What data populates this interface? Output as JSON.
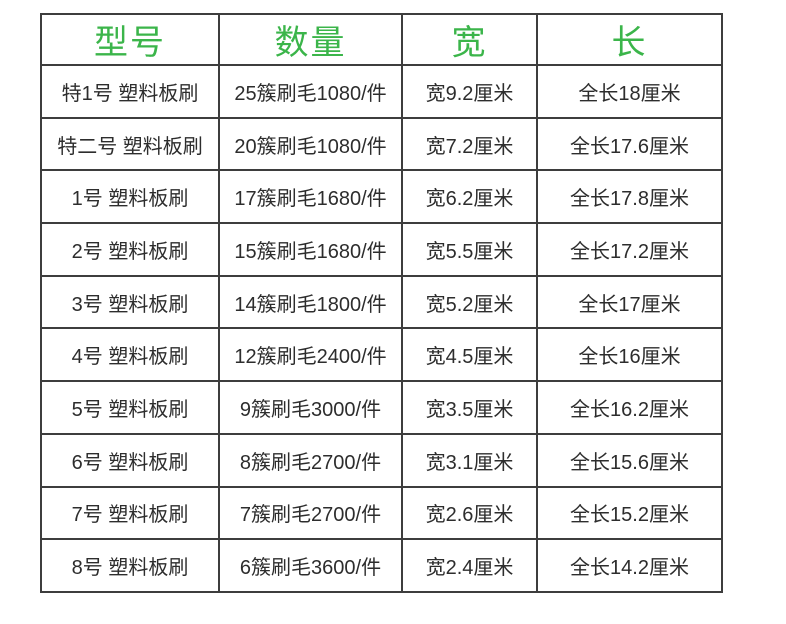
{
  "page": {
    "background_color": "#ffffff",
    "header_text_color": "#3bb54a",
    "body_text_color": "#2d2d2d",
    "border_color": "#3d3d3d"
  },
  "table": {
    "headers": [
      "型号",
      "数量",
      "宽",
      "长"
    ],
    "columns": [
      "model",
      "quantity",
      "width",
      "length"
    ],
    "rows": [
      [
        "特1号 塑料板刷",
        "25簇刷毛1080/件",
        "宽9.2厘米",
        "全长18厘米"
      ],
      [
        "特二号 塑料板刷",
        "20簇刷毛1080/件",
        "宽7.2厘米",
        "全长17.6厘米"
      ],
      [
        "1号 塑料板刷",
        "17簇刷毛1680/件",
        "宽6.2厘米",
        "全长17.8厘米"
      ],
      [
        "2号 塑料板刷",
        "15簇刷毛1680/件",
        "宽5.5厘米",
        "全长17.2厘米"
      ],
      [
        "3号 塑料板刷",
        "14簇刷毛1800/件",
        "宽5.2厘米",
        "全长17厘米"
      ],
      [
        "4号 塑料板刷",
        "12簇刷毛2400/件",
        "宽4.5厘米",
        "全长16厘米"
      ],
      [
        "5号 塑料板刷",
        "9簇刷毛3000/件",
        "宽3.5厘米",
        "全长16.2厘米"
      ],
      [
        "6号 塑料板刷",
        "8簇刷毛2700/件",
        "宽3.1厘米",
        "全长15.6厘米"
      ],
      [
        "7号 塑料板刷",
        "7簇刷毛2700/件",
        "宽2.6厘米",
        "全长15.2厘米"
      ],
      [
        "8号 塑料板刷",
        "6簇刷毛3600/件",
        "宽2.4厘米",
        "全长14.2厘米"
      ]
    ]
  }
}
